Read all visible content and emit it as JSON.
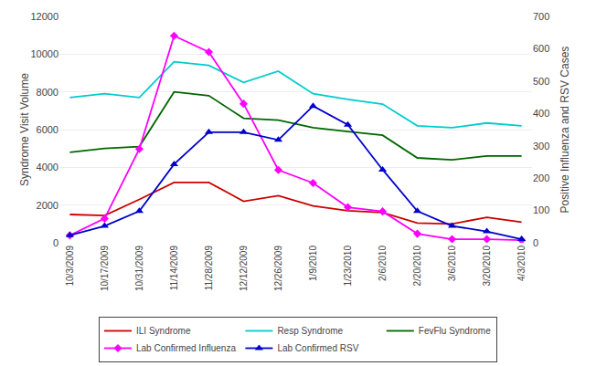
{
  "chart_data": {
    "type": "line",
    "categories": [
      "10/3/2009",
      "10/17/2009",
      "10/31/2009",
      "11/14/2009",
      "11/28/2009",
      "12/12/2009",
      "12/26/2009",
      "1/9/2010",
      "1/23/2010",
      "2/6/2010",
      "2/20/2010",
      "3/6/2010",
      "3/20/2010",
      "4/3/2010"
    ],
    "series": [
      {
        "name": "ILI Syndrome",
        "color": "#cc0000",
        "values": [
          1500,
          1450,
          2300,
          3200,
          3200,
          2200,
          2500,
          1950,
          1700,
          1600,
          1050,
          1000,
          1350,
          1100
        ]
      },
      {
        "name": "Resp Syndrome",
        "color": "#00cccc",
        "values": [
          7700,
          7900,
          7700,
          9600,
          9400,
          8500,
          9100,
          7900,
          7600,
          7350,
          6200,
          6100,
          6350,
          6200
        ]
      },
      {
        "name": "FevFlu Syndrome",
        "color": "#006600",
        "values": [
          4800,
          5000,
          5100,
          8000,
          7800,
          6600,
          6500,
          6100,
          5900,
          5700,
          4500,
          4400,
          4600,
          4600
        ]
      },
      {
        "name": "Lab Confirmed Influenza",
        "color": "#ff00ff",
        "marker": "diamond",
        "axis": "y2",
        "values": [
          23,
          75,
          290,
          640,
          590,
          430,
          225,
          185,
          110,
          97,
          28,
          11,
          11,
          8
        ]
      },
      {
        "name": "Lab Confirmed RSV",
        "color": "#0000cc",
        "marker": "triangle-up",
        "axis": "y2",
        "values": [
          23,
          52,
          98,
          243,
          342,
          342,
          318,
          423,
          365,
          226,
          98,
          52,
          35,
          11
        ]
      }
    ],
    "ylabel": "Syndrome Visit Volume",
    "y2label": "Positive Influenza and RSV Cases",
    "ylim": [
      0,
      12000
    ],
    "yticks": [
      0,
      2000,
      4000,
      6000,
      8000,
      10000,
      12000
    ],
    "y2lim": [
      0,
      700
    ],
    "y2ticks": [
      0,
      100,
      200,
      300,
      400,
      500,
      600,
      700
    ],
    "grid": true,
    "legend": "bottom"
  }
}
